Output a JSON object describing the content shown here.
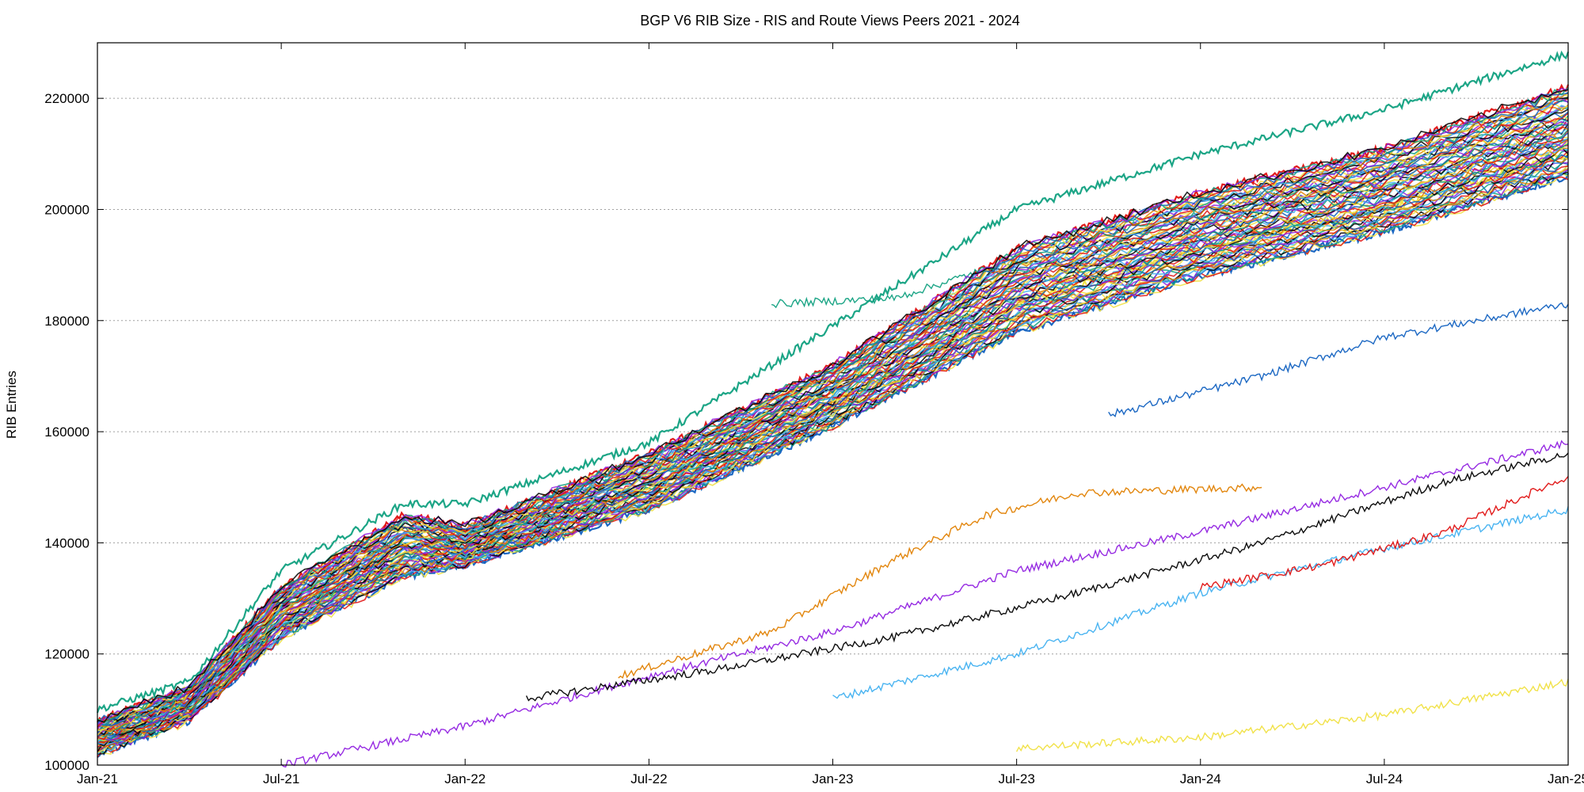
{
  "chart_data": {
    "type": "scatter",
    "title": "BGP V6 RIB Size - RIS and Route Views Peers 2021 - 2024",
    "ylabel": "RIB Entries",
    "xlabel": "",
    "xlim": [
      "2021-01-01",
      "2025-01-01"
    ],
    "ylim": [
      100000,
      230000
    ],
    "x_ticks": [
      "Jan-21",
      "Jul-21",
      "Jan-22",
      "Jul-22",
      "Jan-23",
      "Jul-23",
      "Jan-24",
      "Jul-24",
      "Jan-25"
    ],
    "y_ticks": [
      100000,
      120000,
      140000,
      160000,
      180000,
      200000,
      220000
    ],
    "grid": "horizontal",
    "legend": "none",
    "palette": [
      "#f0e040",
      "#e01010",
      "#1060c0",
      "#10a080",
      "#9020e0",
      "#000000",
      "#40b0f0",
      "#e08000"
    ],
    "series": [
      {
        "values": [
          [
            0,
            104000
          ],
          [
            3,
            110000
          ],
          [
            6,
            126000
          ],
          [
            10,
            137000
          ],
          [
            12,
            139000
          ],
          [
            18,
            150000
          ],
          [
            24,
            165000
          ],
          [
            30,
            183000
          ],
          [
            36,
            193000
          ],
          [
            42,
            200000
          ],
          [
            48,
            210000
          ]
        ]
      },
      {
        "values": [
          [
            0,
            108000
          ],
          [
            3,
            114000
          ],
          [
            6,
            132000
          ],
          [
            10,
            145000
          ],
          [
            12,
            143000
          ],
          [
            18,
            156000
          ],
          [
            24,
            172000
          ],
          [
            30,
            193000
          ],
          [
            36,
            203000
          ],
          [
            42,
            211000
          ],
          [
            48,
            222000
          ]
        ]
      },
      {
        "values": [
          [
            0,
            102000
          ],
          [
            3,
            108000
          ],
          [
            6,
            123000
          ],
          [
            10,
            134000
          ],
          [
            12,
            136000
          ],
          [
            18,
            146000
          ],
          [
            24,
            161000
          ],
          [
            30,
            178000
          ],
          [
            36,
            188000
          ],
          [
            42,
            196000
          ],
          [
            48,
            206000
          ]
        ]
      },
      {
        "values": [
          [
            0,
            110000
          ],
          [
            3,
            115000
          ],
          [
            6,
            135000
          ],
          [
            10,
            147000
          ],
          [
            12,
            147000
          ],
          [
            18,
            158000
          ],
          [
            24,
            179000
          ],
          [
            30,
            200000
          ],
          [
            36,
            210000
          ],
          [
            42,
            218000
          ],
          [
            48,
            228000
          ]
        ]
      },
      {
        "values": [
          [
            6,
            100000
          ],
          [
            12,
            107000
          ],
          [
            18,
            116000
          ],
          [
            24,
            124000
          ],
          [
            30,
            135000
          ],
          [
            36,
            142000
          ],
          [
            42,
            150000
          ],
          [
            48,
            158000
          ]
        ]
      },
      {
        "values": [
          [
            14,
            112000
          ],
          [
            20,
            117000
          ],
          [
            26,
            123000
          ],
          [
            32,
            131000
          ],
          [
            38,
            140000
          ],
          [
            44,
            151000
          ],
          [
            48,
            156000
          ]
        ]
      },
      {
        "values": [
          [
            24,
            112000
          ],
          [
            30,
            120000
          ],
          [
            36,
            131000
          ],
          [
            42,
            139000
          ],
          [
            48,
            146000
          ]
        ]
      },
      {
        "values": [
          [
            17,
            116000
          ],
          [
            22,
            124000
          ],
          [
            26,
            137000
          ],
          [
            29,
            145000
          ],
          [
            32,
            149000
          ],
          [
            38,
            150000
          ]
        ]
      },
      {
        "values": [
          [
            30,
            103000
          ],
          [
            36,
            105000
          ],
          [
            42,
            109000
          ],
          [
            48,
            115000
          ]
        ]
      },
      {
        "values": [
          [
            36,
            132000
          ],
          [
            40,
            136000
          ],
          [
            44,
            142000
          ],
          [
            48,
            152000
          ]
        ]
      },
      {
        "values": [
          [
            33,
            163000
          ],
          [
            38,
            170000
          ],
          [
            42,
            177000
          ],
          [
            48,
            183000
          ]
        ]
      },
      {
        "values": [
          [
            22,
            183000
          ],
          [
            26,
            184000
          ],
          [
            30,
            191000
          ]
        ]
      }
    ]
  }
}
